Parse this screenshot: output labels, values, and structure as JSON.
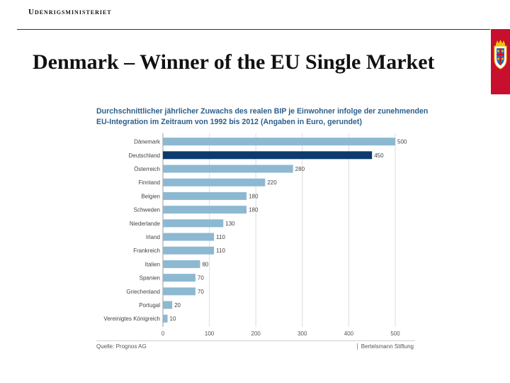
{
  "header": {
    "ministry": "Udenrigsministeriet",
    "title": "Denmark –  Winner of the EU Single Market"
  },
  "colors": {
    "accent": "#c8102e",
    "bar": "#8db8d2",
    "highlight": "#0d3b6e",
    "chart_title": "#2b5f8c"
  },
  "chart_data": {
    "type": "bar",
    "orientation": "horizontal",
    "title_lines": [
      "Durchschnittlicher jährlicher Zuwachs des realen BIP je Einwohner infolge der zunehmenden",
      "EU-Integration im Zeitraum von 1992 bis 2012 (Angaben in Euro, gerundet)"
    ],
    "categories": [
      "Dänemark",
      "Deutschland",
      "Österreich",
      "Finnland",
      "Belgien",
      "Schweden",
      "Niederlande",
      "Irland",
      "Frankreich",
      "Italien",
      "Spanien",
      "Griechenland",
      "Portugal",
      "Vereinigtes Königreich"
    ],
    "values": [
      500,
      450,
      280,
      220,
      180,
      180,
      130,
      110,
      110,
      80,
      70,
      70,
      20,
      10
    ],
    "highlight_category": "Deutschland",
    "xlim": [
      0,
      500
    ],
    "xticks": [
      0,
      100,
      200,
      300,
      400,
      500
    ],
    "grid": true,
    "source": "Quelle: Prognos AG",
    "publisher": "Bertelsmann Stiftung"
  }
}
